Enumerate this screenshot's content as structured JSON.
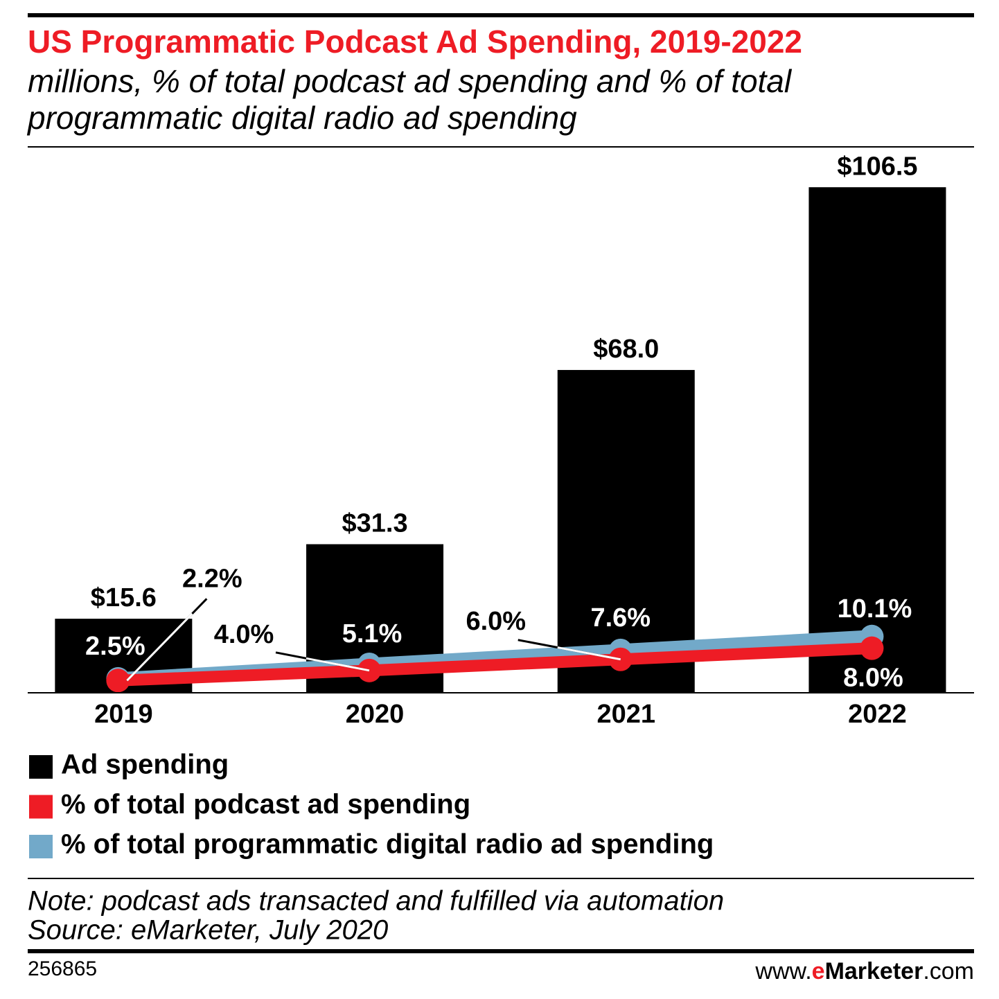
{
  "chart_data": {
    "type": "bar",
    "title": "US Programmatic Podcast Ad Spending, 2019-2022",
    "subtitle": [
      "millions, % of total podcast ad spending and % of total",
      "programmatic digital radio ad spending"
    ],
    "categories": [
      "2019",
      "2020",
      "2021",
      "2022"
    ],
    "series": [
      {
        "name": "Ad spending",
        "type": "bar",
        "color": "#000000",
        "values": [
          15.6,
          31.3,
          68.0,
          106.5
        ],
        "value_labels": [
          "$15.6",
          "$31.3",
          "$68.0",
          "$106.5"
        ]
      },
      {
        "name": "% of total podcast ad spending",
        "type": "line",
        "axis": "y2",
        "color": "#ee1c25",
        "values": [
          2.2,
          4.0,
          6.0,
          8.0
        ],
        "value_labels": [
          "2.2%",
          "4.0%",
          "6.0%",
          "8.0%"
        ]
      },
      {
        "name": "% of total programmatic digital radio ad spending",
        "type": "line",
        "axis": "y2",
        "color": "#72a9c9",
        "values": [
          2.5,
          5.1,
          7.6,
          10.1
        ],
        "value_labels": [
          "2.5%",
          "5.1%",
          "7.6%",
          "10.1%"
        ]
      }
    ],
    "ylim": [
      0,
      115
    ],
    "y2lim": [
      0,
      98
    ],
    "note": "Note: podcast ads transacted and fulfilled via automation",
    "source": "Source: eMarketer, July 2020",
    "chart_id": "256865",
    "brand": [
      "www.",
      "e",
      "Marketer",
      ".com"
    ]
  }
}
